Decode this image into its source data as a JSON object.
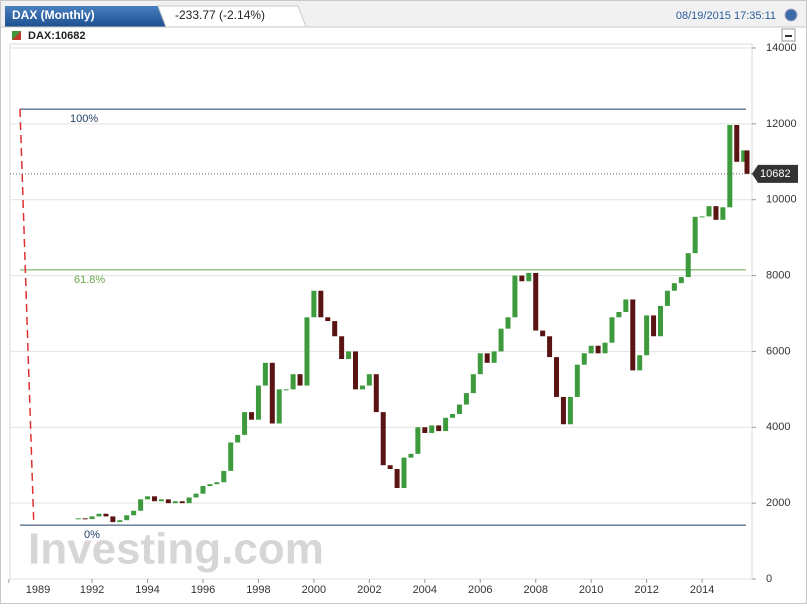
{
  "header": {
    "tab_title": "DAX (Monthly)",
    "change": "-233.77 (-2.14%)",
    "timestamp": "08/19/2015 17:35:11"
  },
  "chart_data": {
    "type": "candlestick",
    "legend_label": "DAX:10682",
    "watermark": "Investing.com",
    "up_color": "#3d9a3d",
    "down_color": "#5a1414",
    "x": [
      1991.5,
      1991.75,
      1992.0,
      1992.25,
      1992.5,
      1992.75,
      1993.0,
      1993.25,
      1993.5,
      1993.75,
      1994.0,
      1994.25,
      1994.5,
      1994.75,
      1995.0,
      1995.25,
      1995.5,
      1995.75,
      1996.0,
      1996.25,
      1996.5,
      1996.75,
      1997.0,
      1997.25,
      1997.5,
      1997.75,
      1998.0,
      1998.25,
      1998.5,
      1998.75,
      1999.0,
      1999.25,
      1999.5,
      1999.75,
      2000.0,
      2000.25,
      2000.5,
      2000.75,
      2001.0,
      2001.25,
      2001.5,
      2001.75,
      2002.0,
      2002.25,
      2002.5,
      2002.75,
      2003.0,
      2003.25,
      2003.5,
      2003.75,
      2004.0,
      2004.25,
      2004.5,
      2004.75,
      2005.0,
      2005.25,
      2005.5,
      2005.75,
      2006.0,
      2006.25,
      2006.5,
      2006.75,
      2007.0,
      2007.25,
      2007.5,
      2007.75,
      2008.0,
      2008.25,
      2008.5,
      2008.75,
      2009.0,
      2009.25,
      2009.5,
      2009.75,
      2010.0,
      2010.25,
      2010.5,
      2010.75,
      2011.0,
      2011.25,
      2011.5,
      2011.75,
      2012.0,
      2012.25,
      2012.5,
      2012.75,
      2013.0,
      2013.25,
      2013.5,
      2013.75,
      2014.0,
      2014.25,
      2014.5,
      2014.75,
      2015.0,
      2015.25,
      2015.5,
      2015.62
    ],
    "values": [
      1600,
      1580,
      1650,
      1720,
      1650,
      1500,
      1550,
      1680,
      1800,
      2100,
      2180,
      2050,
      2100,
      2000,
      2050,
      2000,
      2150,
      2250,
      2450,
      2500,
      2550,
      2850,
      3600,
      3800,
      4400,
      4200,
      5100,
      5700,
      4100,
      5000,
      5000,
      5400,
      5100,
      6900,
      7600,
      6900,
      6800,
      6400,
      5800,
      6000,
      5000,
      5100,
      5400,
      4400,
      3000,
      2900,
      2400,
      3200,
      3300,
      4000,
      3850,
      4050,
      3900,
      4250,
      4350,
      4600,
      4900,
      5400,
      5950,
      5700,
      6000,
      6600,
      6900,
      8000,
      7850,
      8070,
      6550,
      6400,
      5850,
      4800,
      4080,
      4800,
      5650,
      5950,
      6150,
      5950,
      6230,
      6900,
      7040,
      7370,
      5500,
      5900,
      6950,
      6400,
      7200,
      7600,
      7800,
      7960,
      8590,
      9550,
      9560,
      9830,
      9470,
      9800,
      11970,
      11000,
      11300,
      10682
    ],
    "last": 10682,
    "fib_levels": [
      {
        "label": "100%",
        "value": 12390,
        "color": "#1f3f66"
      },
      {
        "label": "61.8%",
        "value": 8150,
        "color": "#6aa84f"
      },
      {
        "label": "0%",
        "value": 1420,
        "color": "#1f3f66"
      }
    ],
    "trendline": {
      "x": [
        1989.4,
        1989.9
      ],
      "values": [
        12390,
        1420
      ],
      "color": "#e03030"
    },
    "xlim": [
      1989.04,
      2015.8
    ],
    "xticks": [
      1989,
      1992,
      1994,
      1996,
      1998,
      2000,
      2002,
      2004,
      2006,
      2008,
      2010,
      2012,
      2014
    ],
    "ylim": [
      0,
      14000
    ],
    "yticks": [
      0,
      2000,
      4000,
      6000,
      8000,
      10000,
      12000,
      14000
    ],
    "grid": true
  }
}
